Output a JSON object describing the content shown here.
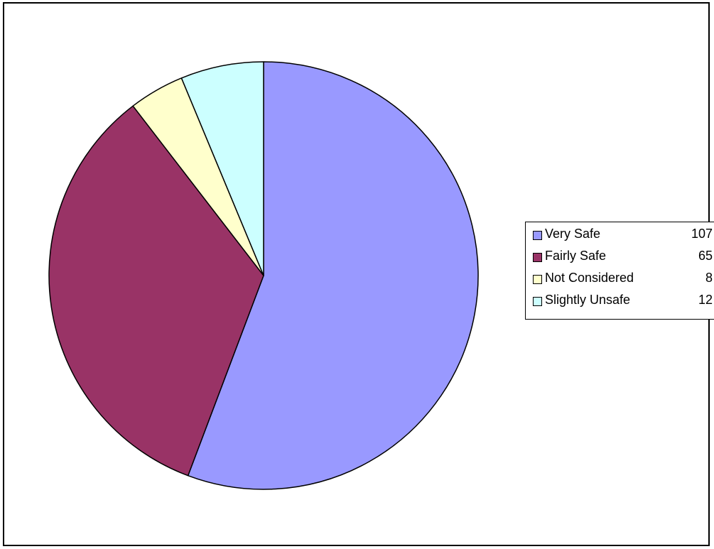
{
  "chart_data": {
    "type": "pie",
    "categories": [
      "Very Safe",
      "Fairly Safe",
      "Not Considered",
      "Slightly Unsafe"
    ],
    "values": [
      107,
      65,
      8,
      12
    ],
    "colors": [
      "#9999ff",
      "#993366",
      "#ffffcc",
      "#ccffff"
    ],
    "legend_position": "right",
    "title": "",
    "xlabel": "",
    "ylabel": ""
  }
}
